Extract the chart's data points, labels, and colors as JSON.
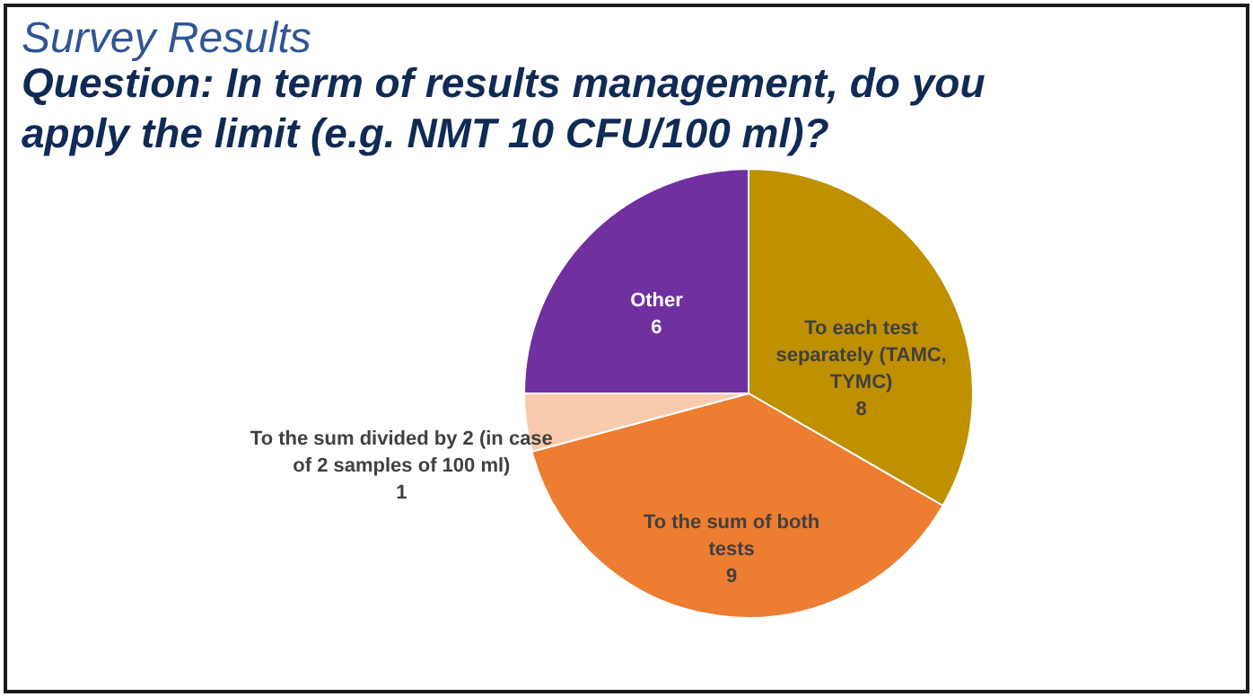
{
  "chart_data": {
    "type": "pie",
    "title": "Survey Results",
    "subtitle": "Question: In term of results management, do you apply the limit (e.g. NMT 10 CFU/100 ml)?",
    "categories": [
      "To each test separately (TAMC, TYMC)",
      "To the sum of both tests",
      "To the sum divided by 2 (in case of 2 samples of 100 ml)",
      "Other"
    ],
    "values": [
      8,
      9,
      1,
      6
    ],
    "colors": [
      "#bf9000",
      "#ed7d31",
      "#f8cbad",
      "#7030a0"
    ],
    "data_labels": true,
    "legend": false
  }
}
